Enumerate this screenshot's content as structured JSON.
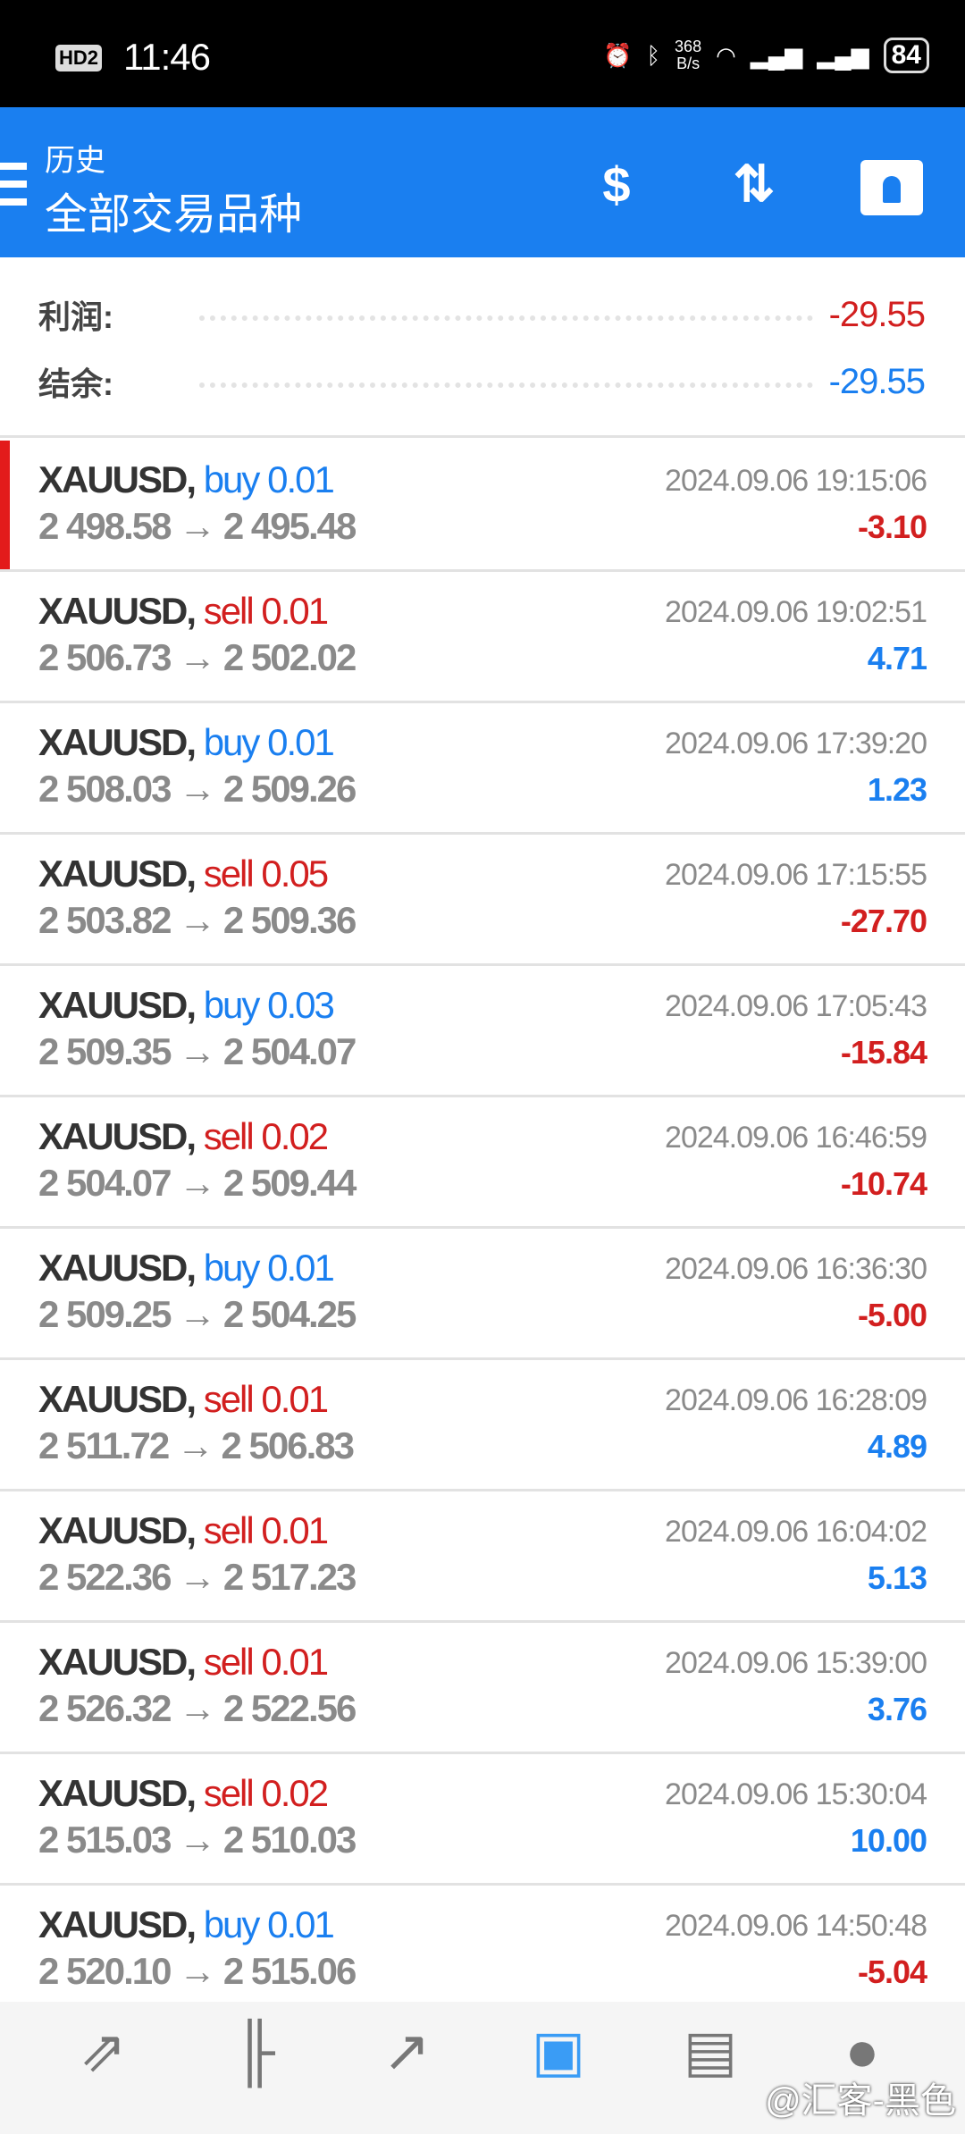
{
  "status_bar": {
    "hd": "HD2",
    "time": "11:46",
    "speed_value": "368",
    "speed_unit": "B/s",
    "battery": "84"
  },
  "header": {
    "subtitle": "历史",
    "title": "全部交易品种"
  },
  "summary": {
    "profit_label": "利润:",
    "profit_value": "-29.55",
    "balance_label": "结余:",
    "balance_value": "-29.55"
  },
  "colors": {
    "accent": "#1a7ff0",
    "buy": "#1a7ff0",
    "sell": "#d21f1f",
    "positive": "#1a7ff0",
    "negative": "#d21f1f"
  },
  "trades": [
    {
      "symbol": "XAUUSD,",
      "side": "buy",
      "volume": "0.01",
      "open": "2 498.58",
      "close": "2 495.48",
      "time": "2024.09.06 19:15:06",
      "profit": "-3.10",
      "selected": true
    },
    {
      "symbol": "XAUUSD,",
      "side": "sell",
      "volume": "0.01",
      "open": "2 506.73",
      "close": "2 502.02",
      "time": "2024.09.06 19:02:51",
      "profit": "4.71"
    },
    {
      "symbol": "XAUUSD,",
      "side": "buy",
      "volume": "0.01",
      "open": "2 508.03",
      "close": "2 509.26",
      "time": "2024.09.06 17:39:20",
      "profit": "1.23"
    },
    {
      "symbol": "XAUUSD,",
      "side": "sell",
      "volume": "0.05",
      "open": "2 503.82",
      "close": "2 509.36",
      "time": "2024.09.06 17:15:55",
      "profit": "-27.70"
    },
    {
      "symbol": "XAUUSD,",
      "side": "buy",
      "volume": "0.03",
      "open": "2 509.35",
      "close": "2 504.07",
      "time": "2024.09.06 17:05:43",
      "profit": "-15.84"
    },
    {
      "symbol": "XAUUSD,",
      "side": "sell",
      "volume": "0.02",
      "open": "2 504.07",
      "close": "2 509.44",
      "time": "2024.09.06 16:46:59",
      "profit": "-10.74"
    },
    {
      "symbol": "XAUUSD,",
      "side": "buy",
      "volume": "0.01",
      "open": "2 509.25",
      "close": "2 504.25",
      "time": "2024.09.06 16:36:30",
      "profit": "-5.00"
    },
    {
      "symbol": "XAUUSD,",
      "side": "sell",
      "volume": "0.01",
      "open": "2 511.72",
      "close": "2 506.83",
      "time": "2024.09.06 16:28:09",
      "profit": "4.89"
    },
    {
      "symbol": "XAUUSD,",
      "side": "sell",
      "volume": "0.01",
      "open": "2 522.36",
      "close": "2 517.23",
      "time": "2024.09.06 16:04:02",
      "profit": "5.13"
    },
    {
      "symbol": "XAUUSD,",
      "side": "sell",
      "volume": "0.01",
      "open": "2 526.32",
      "close": "2 522.56",
      "time": "2024.09.06 15:39:00",
      "profit": "3.76"
    },
    {
      "symbol": "XAUUSD,",
      "side": "sell",
      "volume": "0.02",
      "open": "2 515.03",
      "close": "2 510.03",
      "time": "2024.09.06 15:30:04",
      "profit": "10.00"
    },
    {
      "symbol": "XAUUSD,",
      "side": "buy",
      "volume": "0.01",
      "open": "2 520.10",
      "close": "2 515.06",
      "time": "2024.09.06 14:50:48",
      "profit": "-5.04"
    }
  ],
  "arrow": "→",
  "nav": [
    {
      "icon": "quotes-icon",
      "glyph": "⇗"
    },
    {
      "icon": "chart-icon",
      "glyph": "╟"
    },
    {
      "icon": "trade-icon",
      "glyph": "↗"
    },
    {
      "icon": "history-icon",
      "glyph": "▣",
      "active": true
    },
    {
      "icon": "news-icon",
      "glyph": "▤"
    },
    {
      "icon": "messages-icon",
      "glyph": "●"
    }
  ],
  "watermark": "@汇客-黑色"
}
